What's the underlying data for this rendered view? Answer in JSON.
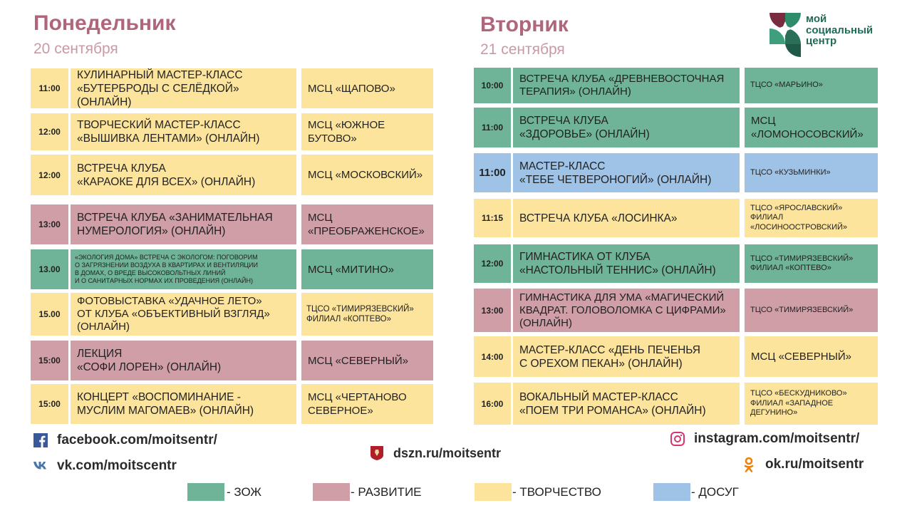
{
  "monday": {
    "day": "Понедельник",
    "date": "20 сентября",
    "events": [
      {
        "time": "11:00",
        "title": "КУЛИНАРНЫЙ МАСТЕР-КЛАСС\n«БУТЕРБРОДЫ С СЕЛЁДКОЙ» (ОНЛАЙН)",
        "place": "МСЦ «ЩАПОВО»",
        "category": "creat"
      },
      {
        "time": "12:00",
        "title": "ТВОРЧЕСКИЙ МАСТЕР-КЛАСС\n«ВЫШИВКА ЛЕНТАМИ» (ОНЛАЙН)",
        "place": "МСЦ «ЮЖНОЕ\nБУТОВО»",
        "category": "creat"
      },
      {
        "time": "12:00",
        "title": "ВСТРЕЧА КЛУБА\n«КАРАОКЕ ДЛЯ ВСЕХ» (ОНЛАЙН)",
        "place": "МСЦ «МОСКОВСКИЙ»",
        "category": "creat"
      },
      {
        "time": "13:00",
        "title": "ВСТРЕЧА КЛУБА «ЗАНИМАТЕЛЬНАЯ\nНУМЕРОЛОГИЯ» (ОНЛАЙН)",
        "place": "МСЦ\n«ПРЕОБРАЖЕНСКОЕ»",
        "category": "dev"
      },
      {
        "time": "13.00",
        "title": "«ЭКОЛОГИЯ ДОМА» ВСТРЕЧА С ЭКОЛОГОМ: ПОГОВОРИМ\nО ЗАГРЯЗНЕНИИ ВОЗДУХА В КВАРТИРАХ И ВЕНТИЛЯЦИИ\nВ ДОМАХ, О ВРЕДЕ ВЫСОКОВОЛЬТНЫХ ЛИНИЙ\nИ О САНИТАРНЫХ НОРМАХ ИХ ПРОВЕДЕНИЯ (ОНЛАЙН)",
        "place": "МСЦ «МИТИНО»",
        "category": "health"
      },
      {
        "time": "15.00",
        "title": "ФОТОВЫСТАВКА «УДАЧНОЕ ЛЕТО»\nОТ КЛУБА «ОБЪЕКТИВНЫЙ ВЗГЛЯД»\n(ОНЛАЙН)",
        "place": "ТЦСО «ТИМИРЯЗЕВСКИЙ»\nФИЛИАЛ «КОПТЕВО»",
        "category": "creat"
      },
      {
        "time": "15:00",
        "title": "ЛЕКЦИЯ\n«СОФИ ЛОРЕН» (ОНЛАЙН)",
        "place": "МСЦ «СЕВЕРНЫЙ»",
        "category": "dev"
      },
      {
        "time": "15:00",
        "title": "КОНЦЕРТ «ВОСПОМИНАНИЕ -\nМУСЛИМ МАГОМАЕВ» (ОНЛАЙН)",
        "place": "МСЦ «ЧЕРТАНОВО\nСЕВЕРНОЕ»",
        "category": "creat"
      }
    ]
  },
  "tuesday": {
    "day": "Вторник",
    "date": "21 сентября",
    "events": [
      {
        "time": "10:00",
        "title": "ВСТРЕЧА КЛУБА «ДРЕВНЕВОСТОЧНАЯ\nТЕРАПИЯ» (ОНЛАЙН)",
        "place": "ТЦСО «МАРЬИНО»",
        "category": "health"
      },
      {
        "time": "11:00",
        "title": "ВСТРЕЧА КЛУБА\n«ЗДОРОВЬЕ» (ОНЛАЙН)",
        "place": "МСЦ\n«ЛОМОНОСОВСКИЙ»",
        "category": "health"
      },
      {
        "time": "11:00",
        "title": "МАСТЕР-КЛАСС\n«ТЕБЕ ЧЕТВЕРОНОГИЙ» (ОНЛАЙН)",
        "place": "ТЦСО «КУЗЬМИНКИ»",
        "category": "leisure"
      },
      {
        "time": "11:15",
        "title": "ВСТРЕЧА КЛУБА «ЛОСИНКА»",
        "place": "ТЦСО «ЯРОСЛАВСКИЙ»\nФИЛИАЛ\n«ЛОСИНООСТРОВСКИЙ»",
        "category": "creat"
      },
      {
        "time": "12:00",
        "title": "ГИМНАСТИКА ОТ КЛУБА\n«НАСТОЛЬНЫЙ ТЕННИС» (ОНЛАЙН)",
        "place": "ТЦСО «ТИМИРЯЗЕВСКИЙ»\nФИЛИАЛ «КОПТЕВО»",
        "category": "health"
      },
      {
        "time": "13:00",
        "title": "ГИМНАСТИКА ДЛЯ УМА «МАГИЧЕСКИЙ\nКВАДРАТ. ГОЛОВОЛОМКА С ЦИФРАМИ»\n(ОНЛАЙН)",
        "place": "ТЦСО «ТИМИРЯЗЕВСКИЙ»",
        "category": "dev"
      },
      {
        "time": "14:00",
        "title": "МАСТЕР-КЛАСС «ДЕНЬ ПЕЧЕНЬЯ\nС ОРЕХОМ ПЕКАН» (ОНЛАЙН)",
        "place": "МСЦ «СЕВЕРНЫЙ»",
        "category": "creat"
      },
      {
        "time": "16:00",
        "title": "ВОКАЛЬНЫЙ МАСТЕР-КЛАСС\n«ПОЕМ ТРИ РОМАНСА» (ОНЛАЙН)",
        "place": "ТЦСО «БЕСКУДНИКОВО»\nФИЛИАЛ «ЗАПАДНОЕ\nДЕГУНИНО»",
        "category": "creat"
      }
    ]
  },
  "logo": {
    "text": "мой\nсоциальный\nцентр"
  },
  "links": {
    "facebook": "facebook.com/moitsentr/",
    "vk": "vk.com/moitscentr",
    "dszn": "dszn.ru/moitsentr",
    "instagram": "instagram.com/moitsentr/",
    "ok": "ok.ru/moitsentr"
  },
  "legend": [
    {
      "label": "- ЗОЖ",
      "color": "#6fb498"
    },
    {
      "label": "- РАЗВИТИЕ",
      "color": "#cf9ea7"
    },
    {
      "label": "- ТВОРЧЕСТВО",
      "color": "#fce49c"
    },
    {
      "label": "- ДОСУГ",
      "color": "#9fc3e6"
    }
  ],
  "colors": {
    "health": "#6fb498",
    "development": "#cf9ea7",
    "creativity": "#fce49c",
    "leisure": "#9fc3e6",
    "heading": "#b0667a"
  }
}
